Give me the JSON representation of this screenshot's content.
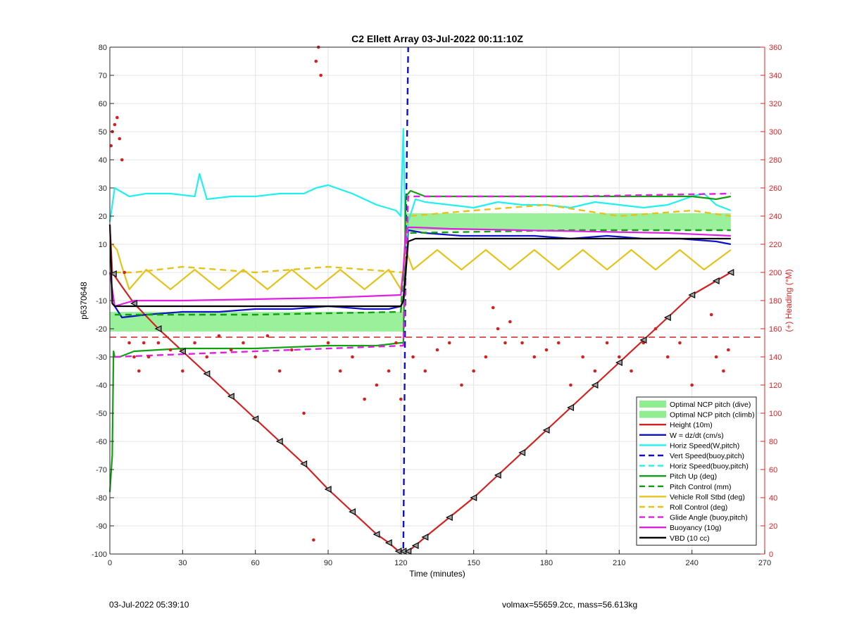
{
  "chart_data": {
    "type": "line",
    "title": "C2 Ellett Array 03-Jul-2022 00:11:10Z",
    "xlabel": "Time (minutes)",
    "ylabel": "p6370648",
    "y2label": "(+) Heading (°M)",
    "xlim": [
      0,
      270
    ],
    "ylim": [
      -100,
      80
    ],
    "y2lim": [
      0,
      360
    ],
    "xticks": [
      0,
      30,
      60,
      90,
      120,
      150,
      180,
      210,
      240,
      270
    ],
    "yticks": [
      -100,
      -90,
      -80,
      -70,
      -60,
      -50,
      -40,
      -30,
      -20,
      -10,
      0,
      10,
      20,
      30,
      40,
      50,
      60,
      70,
      80
    ],
    "y2ticks": [
      0,
      20,
      40,
      60,
      80,
      100,
      120,
      140,
      160,
      180,
      200,
      220,
      240,
      260,
      280,
      300,
      320,
      340,
      360
    ],
    "grid": true,
    "legend_position": "bottom-right",
    "colors": {
      "heading_axis": "#e02020",
      "green_band": "#90ee90",
      "red": "#d62020",
      "blue": "#1010c8",
      "cyan": "#20f0f0",
      "green": "#10a010",
      "gold": "#e6c31a",
      "magenta": "#e020e0",
      "black": "#000000"
    },
    "legend": [
      {
        "label": "Optimal NCP pitch (dive)",
        "style": "patch",
        "color": "#90ee90"
      },
      {
        "label": "Optimal NCP pitch (climb)",
        "style": "patch",
        "color": "#90ee90"
      },
      {
        "label": "Height (10m)",
        "style": "solid",
        "color": "#d62020"
      },
      {
        "label": "W = dz/dt (cm/s)",
        "style": "solid",
        "color": "#1010c8"
      },
      {
        "label": "Horiz Speed(W,pitch)",
        "style": "solid",
        "color": "#20f0f0"
      },
      {
        "label": "Vert Speed(buoy,pitch)",
        "style": "dashed",
        "color": "#1010c8"
      },
      {
        "label": "Horiz Speed(buoy,pitch)",
        "style": "dashed",
        "color": "#20f0f0"
      },
      {
        "label": "Pitch Up (deg)",
        "style": "solid",
        "color": "#10a010"
      },
      {
        "label": "Pitch Control (mm)",
        "style": "dashed",
        "color": "#10a010"
      },
      {
        "label": "Vehicle Roll Stbd (deg)",
        "style": "solid",
        "color": "#e6c31a"
      },
      {
        "label": "Roll Control (deg)",
        "style": "dashed",
        "color": "#e6c31a"
      },
      {
        "label": "Glide Angle (buoy,pitch)",
        "style": "dashed",
        "color": "#e020e0"
      },
      {
        "label": "Buoyancy (10g)",
        "style": "solid",
        "color": "#e020e0"
      },
      {
        "label": "VBD (10 cc)",
        "style": "solid",
        "color": "#000000"
      }
    ],
    "bands": [
      {
        "name": "Optimal NCP pitch (dive)",
        "x": [
          0,
          121
        ],
        "y": [
          -21,
          -14
        ]
      },
      {
        "name": "Optimal NCP pitch (climb)",
        "x": [
          122,
          256
        ],
        "y": [
          15,
          21
        ]
      }
    ],
    "series": [
      {
        "name": "Height (10m)",
        "axis": "left",
        "style": "solid",
        "color": "#d62020",
        "x": [
          0,
          1,
          5,
          10,
          20,
          30,
          40,
          50,
          60,
          70,
          80,
          90,
          100,
          110,
          115,
          119,
          121,
          123,
          126,
          130,
          140,
          150,
          160,
          170,
          180,
          190,
          200,
          210,
          220,
          230,
          240,
          250,
          256
        ],
        "y": [
          17,
          0,
          -5,
          -11,
          -20,
          -28,
          -36,
          -44,
          -52,
          -60,
          -68,
          -77,
          -85,
          -93,
          -96,
          -99,
          -99,
          -99,
          -97,
          -94,
          -87,
          -80,
          -72,
          -64,
          -56,
          -48,
          -40,
          -32,
          -24,
          -16,
          -8,
          -3,
          0
        ]
      },
      {
        "name": "W = dz/dt (cm/s)",
        "axis": "left",
        "style": "solid",
        "color": "#1010c8",
        "x": [
          2,
          5,
          15,
          30,
          45,
          60,
          75,
          90,
          105,
          115,
          120,
          121,
          123,
          130,
          145,
          160,
          175,
          190,
          205,
          220,
          235,
          250,
          256
        ],
        "y": [
          -12,
          -16,
          -15,
          -14,
          -14,
          -13,
          -13,
          -12,
          -13,
          -13,
          -12,
          -10,
          15,
          14,
          13,
          13,
          13,
          12,
          13,
          12,
          12,
          11,
          10
        ]
      },
      {
        "name": "Horiz Speed(W,pitch)",
        "axis": "left",
        "style": "solid",
        "color": "#20f0f0",
        "x": [
          0,
          2,
          4,
          8,
          15,
          25,
          35,
          37,
          40,
          50,
          60,
          70,
          80,
          85,
          90,
          100,
          110,
          118,
          120,
          121,
          122,
          123,
          126,
          130,
          140,
          150,
          160,
          170,
          180,
          190,
          200,
          210,
          220,
          230,
          240,
          245,
          250,
          256
        ],
        "y": [
          18,
          30,
          29,
          27,
          28,
          28,
          27,
          35,
          26,
          27,
          27,
          28,
          28,
          30,
          31,
          28,
          24,
          22,
          20,
          51,
          6,
          18,
          26,
          25,
          24,
          23,
          25,
          24,
          24,
          23,
          25,
          24,
          23,
          24,
          27,
          28,
          24,
          22
        ]
      },
      {
        "name": "Vert Speed(buoy,pitch)",
        "axis": "left",
        "style": "dashed",
        "color": "#1010c8",
        "x": [
          121,
          122,
          123
        ],
        "y": [
          -98,
          10,
          80
        ]
      },
      {
        "name": "Pitch Up (deg)",
        "axis": "left",
        "style": "solid",
        "color": "#10a010",
        "x": [
          0,
          1,
          1.5,
          2,
          4,
          10,
          30,
          60,
          90,
          110,
          120,
          121,
          122,
          124,
          130,
          160,
          190,
          220,
          240,
          250,
          256
        ],
        "y": [
          -78,
          -65,
          -28,
          -30,
          -30,
          -28,
          -27,
          -27,
          -26,
          -26,
          -25,
          -25,
          27,
          29,
          27,
          27,
          27,
          27,
          27,
          26,
          27
        ]
      },
      {
        "name": "Pitch Control (mm)",
        "axis": "left",
        "style": "dashed",
        "color": "#10a010",
        "x": [
          2,
          60,
          120,
          122,
          190,
          256
        ],
        "y": [
          -15,
          -15,
          -14,
          14,
          15,
          15
        ]
      },
      {
        "name": "Vehicle Roll Stbd (deg)",
        "axis": "left",
        "style": "solid",
        "color": "#e6c31a",
        "x": [
          1,
          3,
          5,
          8,
          15,
          25,
          35,
          45,
          55,
          65,
          75,
          85,
          95,
          105,
          115,
          120,
          122,
          125,
          135,
          145,
          155,
          165,
          175,
          185,
          195,
          205,
          215,
          225,
          235,
          245,
          256
        ],
        "y": [
          10,
          8,
          2,
          -6,
          1,
          -6,
          1,
          -6,
          1,
          -6,
          1,
          -6,
          1,
          -6,
          1,
          -6,
          8,
          1,
          8,
          1,
          8,
          1,
          8,
          1,
          8,
          1,
          8,
          1,
          8,
          1,
          8
        ]
      },
      {
        "name": "Roll Control (deg)",
        "axis": "left",
        "style": "dashed",
        "color": "#e6c31a",
        "x": [
          2,
          10,
          30,
          60,
          90,
          121,
          123,
          150,
          180,
          210,
          240,
          256
        ],
        "y": [
          0,
          0,
          2,
          0,
          2,
          0,
          20,
          22,
          24,
          20,
          22,
          20
        ]
      },
      {
        "name": "Glide Angle (buoy,pitch)",
        "axis": "left",
        "style": "dashed",
        "color": "#e020e0",
        "x": [
          2,
          60,
          121,
          123,
          190,
          256
        ],
        "y": [
          -30,
          -28,
          -26,
          27,
          27,
          28
        ]
      },
      {
        "name": "Buoyancy (10g)",
        "axis": "left",
        "style": "solid",
        "color": "#e020e0",
        "x": [
          0,
          2,
          10,
          30,
          60,
          90,
          120,
          121,
          122,
          123,
          126,
          140,
          170,
          200,
          230,
          256
        ],
        "y": [
          0,
          -12,
          -10,
          -10,
          -9.5,
          -9,
          -8,
          1,
          14,
          16,
          16,
          15.5,
          15,
          14.5,
          14,
          13
        ]
      },
      {
        "name": "VBD (10 cc)",
        "axis": "left",
        "style": "solid",
        "color": "#000000",
        "x": [
          0,
          1,
          2,
          10,
          60,
          120,
          121,
          122,
          123,
          126,
          160,
          200,
          256
        ],
        "y": [
          17,
          -11,
          -12,
          -12,
          -12,
          -12,
          -10,
          0,
          11,
          12,
          12,
          12,
          12
        ]
      },
      {
        "name": "Heading",
        "axis": "right",
        "style": "dots",
        "color": "#d62020",
        "x": [
          0.5,
          1,
          2,
          3,
          4,
          5,
          6,
          8,
          10,
          12,
          14,
          16,
          20,
          25,
          30,
          35,
          40,
          45,
          50,
          55,
          60,
          65,
          70,
          75,
          80,
          84,
          85,
          86,
          87,
          90,
          95,
          100,
          105,
          110,
          115,
          118,
          120,
          125,
          130,
          135,
          140,
          145,
          150,
          155,
          158,
          160,
          163,
          165,
          170,
          175,
          180,
          185,
          190,
          195,
          200,
          205,
          210,
          215,
          220,
          225,
          230,
          235,
          240,
          243,
          245,
          248,
          250,
          253,
          255
        ],
        "y": [
          290,
          300,
          305,
          310,
          295,
          280,
          200,
          150,
          140,
          130,
          150,
          140,
          150,
          145,
          130,
          150,
          140,
          155,
          145,
          150,
          140,
          155,
          130,
          145,
          100,
          10,
          350,
          360,
          340,
          150,
          130,
          140,
          110,
          120,
          130,
          150,
          110,
          140,
          130,
          145,
          150,
          120,
          130,
          140,
          175,
          160,
          150,
          165,
          150,
          140,
          145,
          150,
          120,
          140,
          130,
          150,
          140,
          130,
          150,
          160,
          140,
          150,
          120,
          100,
          110,
          170,
          140,
          130,
          145
        ]
      }
    ],
    "markers": {
      "name": "Height markers",
      "axis": "left",
      "x": [
        1.5,
        10,
        20,
        30,
        40,
        50,
        60,
        70,
        80,
        90,
        100,
        110,
        115,
        119,
        121,
        123,
        126,
        130,
        140,
        150,
        160,
        170,
        180,
        190,
        200,
        210,
        220,
        230,
        240,
        250,
        256
      ],
      "y": [
        -0.5,
        -11,
        -20,
        -28,
        -36,
        -44,
        -52,
        -60,
        -68,
        -77,
        -85,
        -93,
        -96,
        -99,
        -99,
        -99,
        -97,
        -94,
        -87,
        -80,
        -72,
        -64,
        -56,
        -48,
        -40,
        -32,
        -24,
        -16,
        -8,
        -3,
        0
      ]
    }
  },
  "footer": {
    "left": "03-Jul-2022 05:39:10",
    "right": "volmax=55659.2cc, mass=56.613kg"
  }
}
